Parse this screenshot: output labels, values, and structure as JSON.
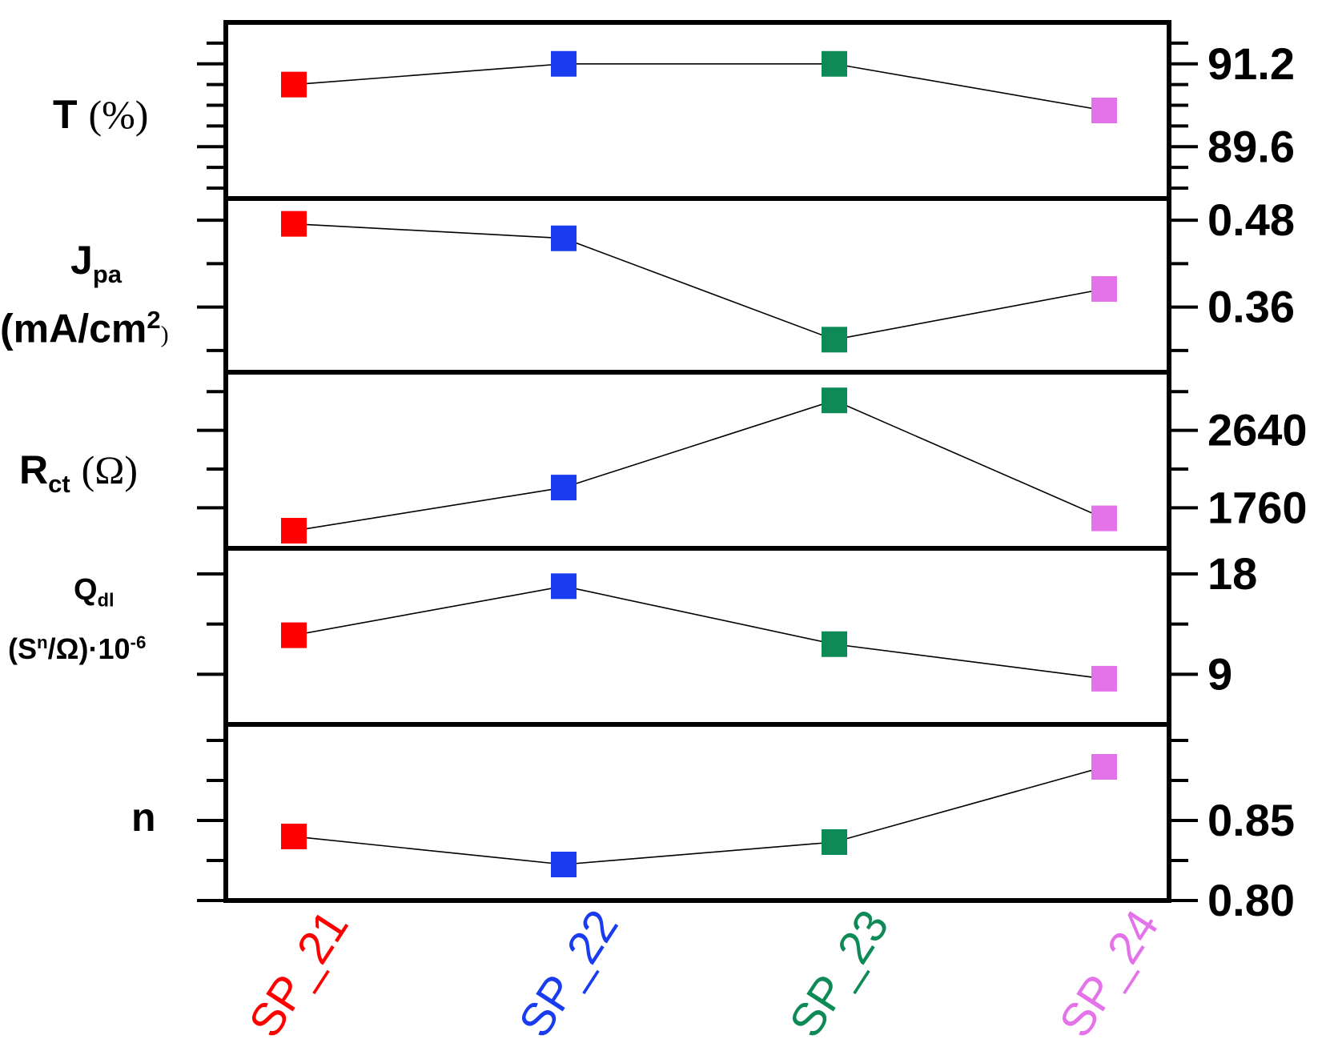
{
  "chart_data": {
    "type": "line",
    "categories": [
      "SP_21",
      "SP_22",
      "SP_23",
      "SP_24"
    ],
    "category_colors": [
      "#ff0000",
      "#1a3cf0",
      "#0e8a56",
      "#e472e8"
    ],
    "line_color": "#000000",
    "panels": [
      {
        "key": "T",
        "ylabel": {
          "main": "T",
          "unit": "(%)"
        },
        "ylim": [
          88.6,
          92.0
        ],
        "major_ticks": [
          89.6,
          91.2
        ],
        "minor_ticks": [
          88.8,
          89.2,
          90.0,
          90.4,
          90.8,
          91.6,
          92.0
        ],
        "tick_labels": [
          "89.6",
          "91.2"
        ],
        "values": [
          90.8,
          91.2,
          91.2,
          90.3
        ]
      },
      {
        "key": "Jpa",
        "ylabel": {
          "main": "J",
          "sub": "pa",
          "unit_main": "(mA/cm",
          "unit_sup": "2",
          "unit_close": ")"
        },
        "ylim": [
          0.27,
          0.51
        ],
        "major_ticks": [
          0.36,
          0.48
        ],
        "minor_ticks": [
          0.3,
          0.42
        ],
        "tick_labels": [
          "0.36",
          "0.48"
        ],
        "values": [
          0.475,
          0.455,
          0.315,
          0.385
        ]
      },
      {
        "key": "Rct",
        "ylabel": {
          "main": "R",
          "sub": "ct",
          "unit": "(Ω)"
        },
        "ylim": [
          1300,
          3300
        ],
        "major_ticks": [
          1760,
          2640
        ],
        "minor_ticks": [
          1320,
          2200,
          3080
        ],
        "tick_labels": [
          "1760",
          "2640"
        ],
        "values": [
          1500,
          1990,
          2980,
          1640
        ]
      },
      {
        "key": "Qdl",
        "ylabel": {
          "main": "Q",
          "sub": "dl",
          "unit_main": "(S",
          "unit_sup": "n",
          "unit_mid": "/Ω)·10",
          "unit_exp": "-6"
        },
        "ylim": [
          4.5,
          20.3
        ],
        "major_ticks": [
          9,
          18
        ],
        "minor_ticks": [
          13.5
        ],
        "tick_labels": [
          "9",
          "18"
        ],
        "values": [
          12.5,
          16.9,
          11.7,
          8.6
        ]
      },
      {
        "key": "n",
        "ylabel": {
          "main": "n"
        },
        "ylim": [
          0.8,
          0.91
        ],
        "major_ticks": [
          0.8,
          0.85
        ],
        "minor_ticks": [
          0.825,
          0.875,
          0.9
        ],
        "tick_labels": [
          "0.80",
          "0.85"
        ],
        "values": [
          0.84,
          0.8225,
          0.8365,
          0.8835
        ]
      }
    ]
  }
}
